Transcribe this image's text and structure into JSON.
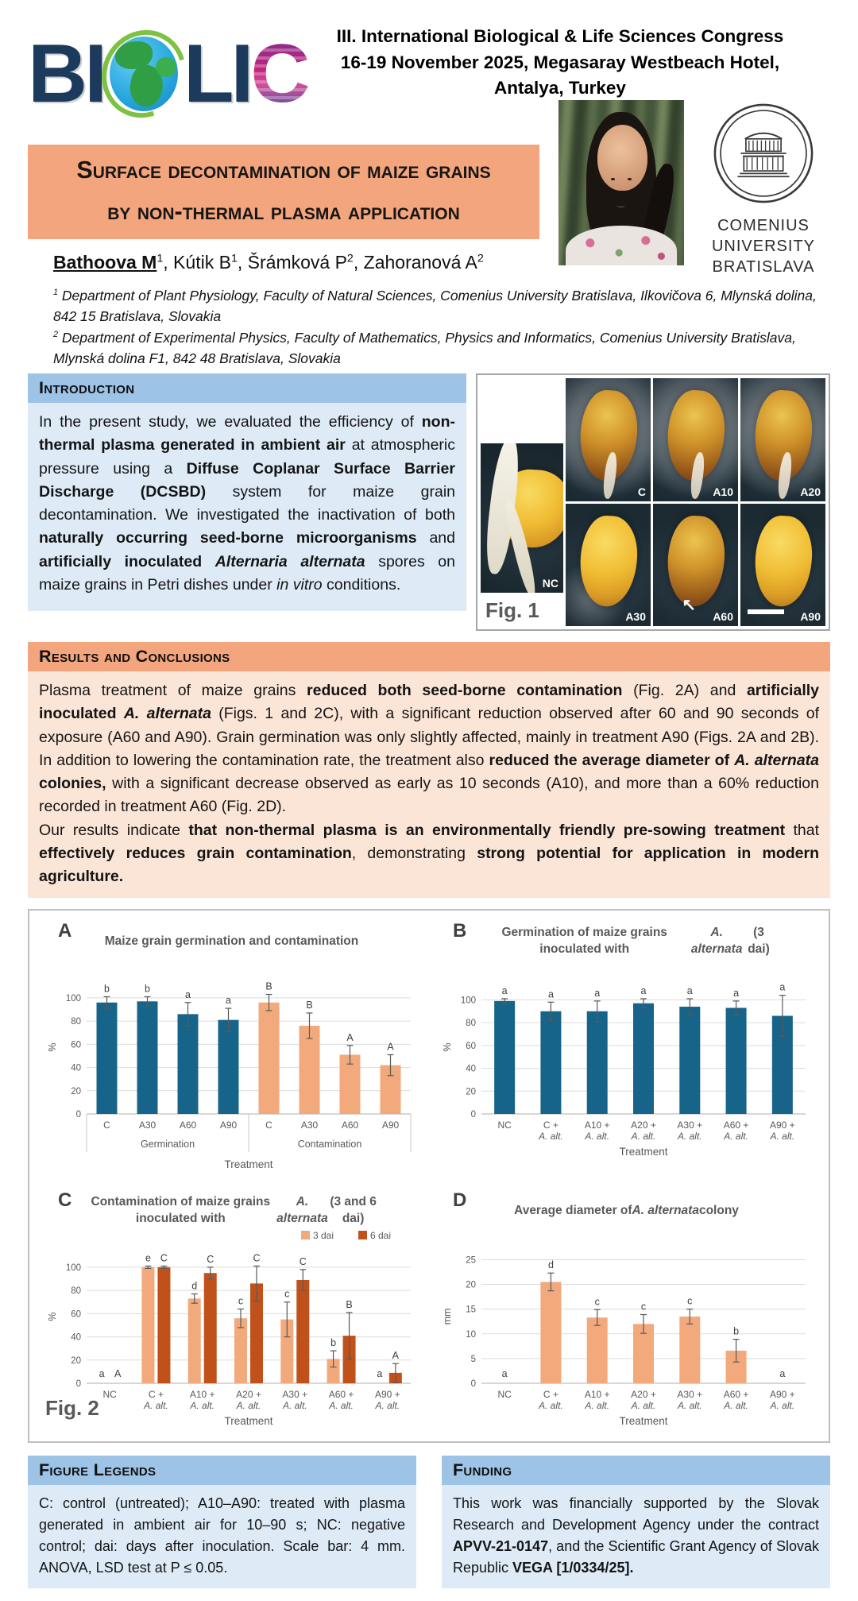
{
  "header": {
    "logo_bi": "BI",
    "logo_li": "LI",
    "logo_c": "C",
    "congress_lines": [
      "III. International Biological & Life Sciences Congress",
      "16-19 November 2025, Megasaray Westbeach Hotel,",
      "Antalya, Turkey"
    ],
    "comenius_lines": [
      "COMENIUS",
      "UNIVERSITY",
      "BRATISLAVA"
    ]
  },
  "title_lines": [
    "Surface decontamination of maize grains",
    "by non-thermal plasma application"
  ],
  "authors_segments": [
    {
      "t": "Bathoova M",
      "b": true,
      "u": true
    },
    {
      "t": "1",
      "sup": true
    },
    {
      "t": ", Kútik B"
    },
    {
      "t": "1",
      "sup": true
    },
    {
      "t": ", Šrámková P"
    },
    {
      "t": "2",
      "sup": true
    },
    {
      "t": ", Zahoranová A"
    },
    {
      "t": "2",
      "sup": true
    }
  ],
  "affiliations": [
    [
      {
        "t": "1",
        "sup": true
      },
      {
        "t": " Department of Plant Physiology, Faculty of Natural Sciences, Comenius University Bratislava, Ilkovičova 6, Mlynská dolina, 842 15 Bratislava, Slovakia"
      }
    ],
    [
      {
        "t": "2",
        "sup": true
      },
      {
        "t": " Department of Experimental Physics, Faculty of Mathematics, Physics and Informatics, Comenius University Bratislava, Mlynská dolina F1, 842 48 Bratislava, Slovakia"
      }
    ]
  ],
  "sections": {
    "introduction": {
      "heading": "Introduction",
      "body_segments": [
        {
          "t": "In the present study, we evaluated the efficiency of "
        },
        {
          "t": "non-thermal plasma generated in ambient air",
          "b": true
        },
        {
          "t": " at atmospheric pressure using a "
        },
        {
          "t": "Diffuse Coplanar Surface Barrier Discharge (DCSBD)",
          "b": true
        },
        {
          "t": " system for maize grain decontamination. We investigated the inactivation of both "
        },
        {
          "t": "naturally occurring seed-borne microorganisms",
          "b": true
        },
        {
          "t": " and "
        },
        {
          "t": "artificially inoculated ",
          "b": true
        },
        {
          "t": "Alternaria alternata",
          "b": true,
          "i": true
        },
        {
          "t": " spores on maize grains in Petri dishes under "
        },
        {
          "t": "in vitro",
          "i": true
        },
        {
          "t": " conditions."
        }
      ]
    },
    "results": {
      "heading": "Results and Conclusions",
      "p1": [
        {
          "t": "Plasma treatment of maize grains "
        },
        {
          "t": "reduced both seed-borne contamination",
          "b": true
        },
        {
          "t": " (Fig. 2A) and "
        },
        {
          "t": "artificially inoculated ",
          "b": true
        },
        {
          "t": "A. alternata",
          "b": true,
          "i": true
        },
        {
          "t": " (Figs. 1 and 2C), with a significant reduction observed after 60 and 90 seconds of exposure (A60 and A90). Grain germination was only slightly affected, mainly in treatment A90 (Figs. 2A and 2B). In addition to lowering the contamination rate, the treatment also "
        },
        {
          "t": "reduced the average diameter of ",
          "b": true
        },
        {
          "t": "A. alternata",
          "b": true,
          "i": true
        },
        {
          "t": " colonies,",
          "b": true
        },
        {
          "t": " with a significant decrease observed as early as 10 seconds (A10), and more than a 60% reduction recorded in treatment A60 (Fig. 2D)."
        }
      ],
      "p2": [
        {
          "t": "Our results indicate "
        },
        {
          "t": "that non-thermal plasma is an environmentally friendly pre-sowing treatment",
          "b": true
        },
        {
          "t": " that "
        },
        {
          "t": "effectively reduces grain contamination",
          "b": true
        },
        {
          "t": ", demonstrating "
        },
        {
          "t": "strong potential for application in modern agriculture.",
          "b": true
        }
      ]
    },
    "figure_legends": {
      "heading": "Figure Legends",
      "body_segments": [
        {
          "t": "C: control (untreated); A10–A90: treated with plasma generated in ambient air for 10–90 s; NC: negative control; dai: days after inoculation. Scale bar: 4 mm. ANOVA, LSD test at P ≤ 0.05."
        }
      ]
    },
    "funding": {
      "heading": "Funding",
      "body_segments": [
        {
          "t": "This work was financially supported by the Slovak Research and Development Agency under the contract "
        },
        {
          "t": "APVV-21-0147",
          "b": true
        },
        {
          "t": ", and the Scientific Grant Agency of Slovak Republic "
        },
        {
          "t": "VEGA [1/0334/25].",
          "b": true
        }
      ]
    }
  },
  "fig1": {
    "caption": "Fig. 1",
    "arrow_glyph": "↖",
    "labels": {
      "nc": "NC",
      "c": "C",
      "a10": "A10",
      "a20": "A20",
      "a30": "A30",
      "a60": "A60",
      "a90": "A90"
    }
  },
  "fig2": {
    "caption": "Fig. 2"
  },
  "colors": {
    "teal": "#17648A",
    "light_orange": "#F2A97C",
    "dark_orange": "#C1511B",
    "salmon_band": "#F3A57D",
    "salmon_body": "#FBE5D6",
    "blue_band": "#9DC3E6",
    "blue_body": "#DEEBF7"
  },
  "chart_data": [
    {
      "panel": "A",
      "type": "bar",
      "title_segments": [
        {
          "t": "Maize grain germination and contamination"
        }
      ],
      "ylabel": "%",
      "xlabel": "Treatment",
      "ylim": [
        0,
        100
      ],
      "yticks": [
        0,
        20,
        40,
        60,
        80,
        100
      ],
      "plot_max": 115,
      "categories": [
        "C",
        "A30",
        "A60",
        "A90",
        "C",
        "A30",
        "A60",
        "A90"
      ],
      "groups": [
        {
          "label": "Germination",
          "span": 4
        },
        {
          "label": "Contamination",
          "span": 4
        }
      ],
      "series": [
        {
          "name": "",
          "colors": [
            "teal",
            "teal",
            "teal",
            "teal",
            "light_orange",
            "light_orange",
            "light_orange",
            "light_orange"
          ],
          "values": [
            96,
            97,
            86,
            81,
            96,
            76,
            51,
            42
          ],
          "errors": [
            5,
            4,
            10,
            10,
            7,
            11,
            8,
            9
          ],
          "letters": [
            "b",
            "b",
            "a",
            "a",
            "B",
            "B",
            "A",
            "A"
          ]
        }
      ]
    },
    {
      "panel": "B",
      "type": "bar",
      "title_segments": [
        {
          "t": "Germination of maize grains inoculated with "
        },
        {
          "t": "A. alternata",
          "i": true
        },
        {
          "t": " (3 dai)"
        }
      ],
      "ylabel": "%",
      "xlabel": "Treatment",
      "ylim": [
        0,
        100
      ],
      "yticks": [
        0,
        20,
        40,
        60,
        80,
        100
      ],
      "plot_max": 117,
      "categories": [
        "NC",
        "C +|A. alt.",
        "A10 +|A. alt.",
        "A20 +|A. alt.",
        "A30 +|A. alt.",
        "A60 +|A. alt.",
        "A90 +|A. alt."
      ],
      "series": [
        {
          "name": "",
          "color": "teal",
          "values": [
            99,
            90,
            90,
            97,
            94,
            93,
            86
          ],
          "errors": [
            2,
            8,
            9,
            4,
            7,
            6,
            18
          ],
          "letters": [
            "a",
            "a",
            "a",
            "a",
            "a",
            "a",
            "a"
          ]
        }
      ]
    },
    {
      "panel": "C",
      "type": "bar",
      "title_segments": [
        {
          "t": "Contamination of maize grains inoculated with "
        },
        {
          "t": "A. alternata",
          "i": true
        },
        {
          "t": " (3 and 6 dai)"
        }
      ],
      "ylabel": "%",
      "xlabel": "Treatment",
      "ylim": [
        0,
        100
      ],
      "yticks": [
        0,
        20,
        40,
        60,
        80,
        100
      ],
      "plot_max": 115,
      "legend": [
        "3 dai",
        "6 dai"
      ],
      "categories": [
        "NC",
        "C +|A. alt.",
        "A10 +|A. alt.",
        "A20 +|A. alt.",
        "A30 +|A. alt.",
        "A60 +|A. alt.",
        "A90 +|A. alt."
      ],
      "series": [
        {
          "name": "3 dai",
          "color": "light_orange",
          "values": [
            0,
            100,
            73,
            56,
            55,
            21,
            0
          ],
          "errors": [
            0,
            1,
            4,
            8,
            15,
            7,
            0
          ],
          "letters": [
            "a",
            "e",
            "d",
            "c",
            "c",
            "b",
            "a"
          ]
        },
        {
          "name": "6 dai",
          "color": "dark_orange",
          "values": [
            0,
            100,
            95,
            86,
            89,
            41,
            9
          ],
          "errors": [
            0,
            1,
            5,
            15,
            9,
            20,
            8
          ],
          "letters": [
            "A",
            "C",
            "C",
            "C",
            "C",
            "B",
            "A"
          ]
        }
      ]
    },
    {
      "panel": "D",
      "type": "bar",
      "title_segments": [
        {
          "t": "Average diameter of "
        },
        {
          "t": "A. alternata",
          "i": true
        },
        {
          "t": " colony"
        }
      ],
      "ylabel": "mm",
      "xlabel": "Treatment",
      "ylim": [
        0,
        25
      ],
      "yticks": [
        0,
        5,
        10,
        15,
        20,
        25
      ],
      "plot_max": 27,
      "categories": [
        "NC",
        "C +|A. alt.",
        "A10 +|A. alt.",
        "A20 +|A. alt.",
        "A30 +|A. alt.",
        "A60 +|A. alt.",
        "A90 +|A. alt."
      ],
      "series": [
        {
          "name": "",
          "color": "light_orange",
          "values": [
            0,
            20.5,
            13.3,
            12,
            13.5,
            6.6,
            0
          ],
          "errors": [
            0,
            1.8,
            1.6,
            1.9,
            1.5,
            2.3,
            0
          ],
          "letters": [
            "a",
            "d",
            "c",
            "c",
            "c",
            "b",
            "a"
          ]
        }
      ]
    }
  ]
}
